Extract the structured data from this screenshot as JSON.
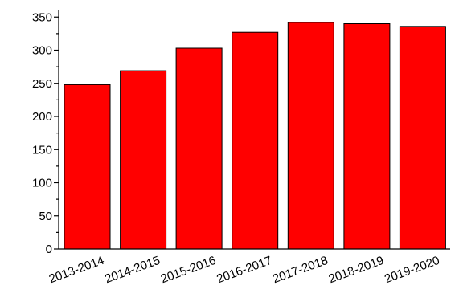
{
  "chart_data": {
    "type": "bar",
    "categories": [
      "2013-2014",
      "2014-2015",
      "2015-2016",
      "2016-2017",
      "2017-2018",
      "2018-2019",
      "2019-2020"
    ],
    "values": [
      248,
      269,
      303,
      327,
      342,
      340,
      336
    ],
    "title": "",
    "xlabel": "",
    "ylabel": "",
    "ylim": [
      0,
      360
    ],
    "yticks": [
      0,
      50,
      100,
      150,
      200,
      250,
      300,
      350
    ],
    "yminor_step": 25,
    "bar_color": "#ff0000",
    "edge_color": "#000000",
    "grid": false,
    "legend": "none"
  }
}
